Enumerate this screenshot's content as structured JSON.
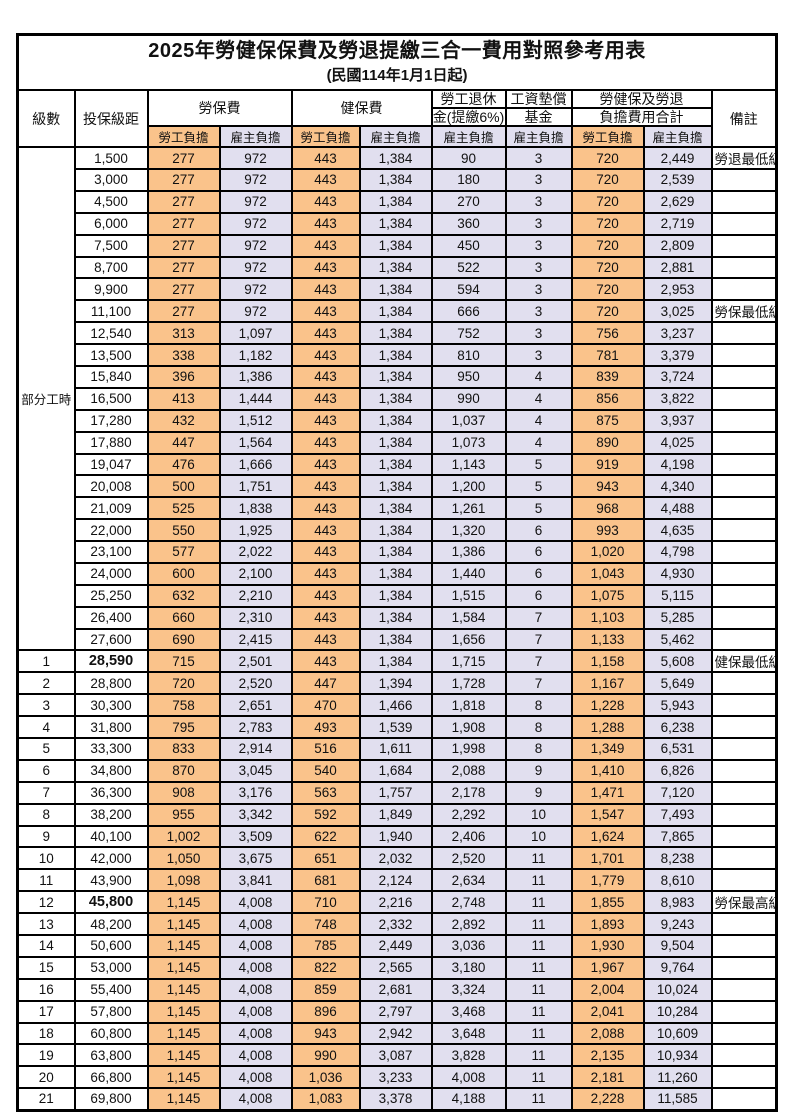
{
  "title": "2025年勞健保保費及勞退提繳三合一費用對照參考用表",
  "subtitle": "(民國114年1月1日起)",
  "header": {
    "level": "級數",
    "bracket": "投保級距",
    "labor_insurance": "勞保費",
    "health_insurance": "健保費",
    "pension_line1": "勞工退休",
    "pension_line2": "金(提繳6%)",
    "wage_fund_line1": "工資墊償",
    "wage_fund_line2": "基金",
    "total_line1": "勞健保及勞退",
    "total_line2": "負擔費用合計",
    "remark": "備註",
    "employee_share": "勞工負擔",
    "employer_share": "雇主負擔"
  },
  "colors": {
    "employee_bg": "#FAC38B",
    "employer_bg": "#E1DFEF",
    "highlight_text": "#FF5050",
    "border": "#000000"
  },
  "part_time_label": "部分工時",
  "rows": [
    {
      "level": "",
      "part_time_rowspan": 23,
      "bracket": "1,500",
      "values": [
        "277",
        "972",
        "443",
        "1,384",
        "90",
        "3",
        "720",
        "2,449"
      ],
      "remark": "勞退最低級距",
      "highlight": true,
      "bracket_bold": false
    },
    {
      "level": "",
      "bracket": "3,000",
      "values": [
        "277",
        "972",
        "443",
        "1,384",
        "180",
        "3",
        "720",
        "2,539"
      ],
      "remark": "",
      "highlight": false,
      "bracket_bold": false
    },
    {
      "level": "",
      "bracket": "4,500",
      "values": [
        "277",
        "972",
        "443",
        "1,384",
        "270",
        "3",
        "720",
        "2,629"
      ],
      "remark": "",
      "highlight": false,
      "bracket_bold": false
    },
    {
      "level": "",
      "bracket": "6,000",
      "values": [
        "277",
        "972",
        "443",
        "1,384",
        "360",
        "3",
        "720",
        "2,719"
      ],
      "remark": "",
      "highlight": false,
      "bracket_bold": false
    },
    {
      "level": "",
      "bracket": "7,500",
      "values": [
        "277",
        "972",
        "443",
        "1,384",
        "450",
        "3",
        "720",
        "2,809"
      ],
      "remark": "",
      "highlight": false,
      "bracket_bold": false
    },
    {
      "level": "",
      "bracket": "8,700",
      "values": [
        "277",
        "972",
        "443",
        "1,384",
        "522",
        "3",
        "720",
        "2,881"
      ],
      "remark": "",
      "highlight": false,
      "bracket_bold": false
    },
    {
      "level": "",
      "bracket": "9,900",
      "values": [
        "277",
        "972",
        "443",
        "1,384",
        "594",
        "3",
        "720",
        "2,953"
      ],
      "remark": "",
      "highlight": false,
      "bracket_bold": false
    },
    {
      "level": "",
      "bracket": "11,100",
      "values": [
        "277",
        "972",
        "443",
        "1,384",
        "666",
        "3",
        "720",
        "3,025"
      ],
      "remark": "勞保最低級距",
      "highlight": true,
      "bracket_bold": false
    },
    {
      "level": "",
      "bracket": "12,540",
      "values": [
        "313",
        "1,097",
        "443",
        "1,384",
        "752",
        "3",
        "756",
        "3,237"
      ],
      "remark": "",
      "highlight": false,
      "bracket_bold": false
    },
    {
      "level": "",
      "bracket": "13,500",
      "values": [
        "338",
        "1,182",
        "443",
        "1,384",
        "810",
        "3",
        "781",
        "3,379"
      ],
      "remark": "",
      "highlight": false,
      "bracket_bold": false
    },
    {
      "level": "",
      "bracket": "15,840",
      "values": [
        "396",
        "1,386",
        "443",
        "1,384",
        "950",
        "4",
        "839",
        "3,724"
      ],
      "remark": "",
      "highlight": false,
      "bracket_bold": false
    },
    {
      "level": "",
      "bracket": "16,500",
      "values": [
        "413",
        "1,444",
        "443",
        "1,384",
        "990",
        "4",
        "856",
        "3,822"
      ],
      "remark": "",
      "highlight": false,
      "bracket_bold": false
    },
    {
      "level": "",
      "bracket": "17,280",
      "values": [
        "432",
        "1,512",
        "443",
        "1,384",
        "1,037",
        "4",
        "875",
        "3,937"
      ],
      "remark": "",
      "highlight": false,
      "bracket_bold": false
    },
    {
      "level": "",
      "bracket": "17,880",
      "values": [
        "447",
        "1,564",
        "443",
        "1,384",
        "1,073",
        "4",
        "890",
        "4,025"
      ],
      "remark": "",
      "highlight": false,
      "bracket_bold": false
    },
    {
      "level": "",
      "bracket": "19,047",
      "values": [
        "476",
        "1,666",
        "443",
        "1,384",
        "1,143",
        "5",
        "919",
        "4,198"
      ],
      "remark": "",
      "highlight": false,
      "bracket_bold": false
    },
    {
      "level": "",
      "bracket": "20,008",
      "values": [
        "500",
        "1,751",
        "443",
        "1,384",
        "1,200",
        "5",
        "943",
        "4,340"
      ],
      "remark": "",
      "highlight": false,
      "bracket_bold": false
    },
    {
      "level": "",
      "bracket": "21,009",
      "values": [
        "525",
        "1,838",
        "443",
        "1,384",
        "1,261",
        "5",
        "968",
        "4,488"
      ],
      "remark": "",
      "highlight": false,
      "bracket_bold": false
    },
    {
      "level": "",
      "bracket": "22,000",
      "values": [
        "550",
        "1,925",
        "443",
        "1,384",
        "1,320",
        "6",
        "993",
        "4,635"
      ],
      "remark": "",
      "highlight": false,
      "bracket_bold": false
    },
    {
      "level": "",
      "bracket": "23,100",
      "values": [
        "577",
        "2,022",
        "443",
        "1,384",
        "1,386",
        "6",
        "1,020",
        "4,798"
      ],
      "remark": "",
      "highlight": false,
      "bracket_bold": false
    },
    {
      "level": "",
      "bracket": "24,000",
      "values": [
        "600",
        "2,100",
        "443",
        "1,384",
        "1,440",
        "6",
        "1,043",
        "4,930"
      ],
      "remark": "",
      "highlight": false,
      "bracket_bold": false
    },
    {
      "level": "",
      "bracket": "25,250",
      "values": [
        "632",
        "2,210",
        "443",
        "1,384",
        "1,515",
        "6",
        "1,075",
        "5,115"
      ],
      "remark": "",
      "highlight": false,
      "bracket_bold": false
    },
    {
      "level": "",
      "bracket": "26,400",
      "values": [
        "660",
        "2,310",
        "443",
        "1,384",
        "1,584",
        "7",
        "1,103",
        "5,285"
      ],
      "remark": "",
      "highlight": false,
      "bracket_bold": false
    },
    {
      "level": "",
      "bracket": "27,600",
      "values": [
        "690",
        "2,415",
        "443",
        "1,384",
        "1,656",
        "7",
        "1,133",
        "5,462"
      ],
      "remark": "",
      "highlight": false,
      "bracket_bold": false
    },
    {
      "level": "1",
      "bracket": "28,590",
      "values": [
        "715",
        "2,501",
        "443",
        "1,384",
        "1,715",
        "7",
        "1,158",
        "5,608"
      ],
      "remark": "健保最低級距",
      "highlight": true,
      "bracket_bold": true
    },
    {
      "level": "2",
      "bracket": "28,800",
      "values": [
        "720",
        "2,520",
        "447",
        "1,394",
        "1,728",
        "7",
        "1,167",
        "5,649"
      ],
      "remark": "",
      "highlight": false,
      "bracket_bold": false
    },
    {
      "level": "3",
      "bracket": "30,300",
      "values": [
        "758",
        "2,651",
        "470",
        "1,466",
        "1,818",
        "8",
        "1,228",
        "5,943"
      ],
      "remark": "",
      "highlight": false,
      "bracket_bold": false
    },
    {
      "level": "4",
      "bracket": "31,800",
      "values": [
        "795",
        "2,783",
        "493",
        "1,539",
        "1,908",
        "8",
        "1,288",
        "6,238"
      ],
      "remark": "",
      "highlight": false,
      "bracket_bold": false
    },
    {
      "level": "5",
      "bracket": "33,300",
      "values": [
        "833",
        "2,914",
        "516",
        "1,611",
        "1,998",
        "8",
        "1,349",
        "6,531"
      ],
      "remark": "",
      "highlight": false,
      "bracket_bold": false
    },
    {
      "level": "6",
      "bracket": "34,800",
      "values": [
        "870",
        "3,045",
        "540",
        "1,684",
        "2,088",
        "9",
        "1,410",
        "6,826"
      ],
      "remark": "",
      "highlight": false,
      "bracket_bold": false
    },
    {
      "level": "7",
      "bracket": "36,300",
      "values": [
        "908",
        "3,176",
        "563",
        "1,757",
        "2,178",
        "9",
        "1,471",
        "7,120"
      ],
      "remark": "",
      "highlight": false,
      "bracket_bold": false
    },
    {
      "level": "8",
      "bracket": "38,200",
      "values": [
        "955",
        "3,342",
        "592",
        "1,849",
        "2,292",
        "10",
        "1,547",
        "7,493"
      ],
      "remark": "",
      "highlight": false,
      "bracket_bold": false
    },
    {
      "level": "9",
      "bracket": "40,100",
      "values": [
        "1,002",
        "3,509",
        "622",
        "1,940",
        "2,406",
        "10",
        "1,624",
        "7,865"
      ],
      "remark": "",
      "highlight": false,
      "bracket_bold": false
    },
    {
      "level": "10",
      "bracket": "42,000",
      "values": [
        "1,050",
        "3,675",
        "651",
        "2,032",
        "2,520",
        "11",
        "1,701",
        "8,238"
      ],
      "remark": "",
      "highlight": false,
      "bracket_bold": false
    },
    {
      "level": "11",
      "bracket": "43,900",
      "values": [
        "1,098",
        "3,841",
        "681",
        "2,124",
        "2,634",
        "11",
        "1,779",
        "8,610"
      ],
      "remark": "",
      "highlight": false,
      "bracket_bold": false
    },
    {
      "level": "12",
      "bracket": "45,800",
      "values": [
        "1,145",
        "4,008",
        "710",
        "2,216",
        "2,748",
        "11",
        "1,855",
        "8,983"
      ],
      "remark": "勞保最高級距",
      "highlight": true,
      "bracket_bold": true
    },
    {
      "level": "13",
      "bracket": "48,200",
      "values": [
        "1,145",
        "4,008",
        "748",
        "2,332",
        "2,892",
        "11",
        "1,893",
        "9,243"
      ],
      "remark": "",
      "highlight": false,
      "bracket_bold": false
    },
    {
      "level": "14",
      "bracket": "50,600",
      "values": [
        "1,145",
        "4,008",
        "785",
        "2,449",
        "3,036",
        "11",
        "1,930",
        "9,504"
      ],
      "remark": "",
      "highlight": false,
      "bracket_bold": false
    },
    {
      "level": "15",
      "bracket": "53,000",
      "values": [
        "1,145",
        "4,008",
        "822",
        "2,565",
        "3,180",
        "11",
        "1,967",
        "9,764"
      ],
      "remark": "",
      "highlight": false,
      "bracket_bold": false
    },
    {
      "level": "16",
      "bracket": "55,400",
      "values": [
        "1,145",
        "4,008",
        "859",
        "2,681",
        "3,324",
        "11",
        "2,004",
        "10,024"
      ],
      "remark": "",
      "highlight": false,
      "bracket_bold": false
    },
    {
      "level": "17",
      "bracket": "57,800",
      "values": [
        "1,145",
        "4,008",
        "896",
        "2,797",
        "3,468",
        "11",
        "2,041",
        "10,284"
      ],
      "remark": "",
      "highlight": false,
      "bracket_bold": false
    },
    {
      "level": "18",
      "bracket": "60,800",
      "values": [
        "1,145",
        "4,008",
        "943",
        "2,942",
        "3,648",
        "11",
        "2,088",
        "10,609"
      ],
      "remark": "",
      "highlight": false,
      "bracket_bold": false
    },
    {
      "level": "19",
      "bracket": "63,800",
      "values": [
        "1,145",
        "4,008",
        "990",
        "3,087",
        "3,828",
        "11",
        "2,135",
        "10,934"
      ],
      "remark": "",
      "highlight": false,
      "bracket_bold": false
    },
    {
      "level": "20",
      "bracket": "66,800",
      "values": [
        "1,145",
        "4,008",
        "1,036",
        "3,233",
        "4,008",
        "11",
        "2,181",
        "11,260"
      ],
      "remark": "",
      "highlight": false,
      "bracket_bold": false
    },
    {
      "level": "21",
      "bracket": "69,800",
      "values": [
        "1,145",
        "4,008",
        "1,083",
        "3,378",
        "4,188",
        "11",
        "2,228",
        "11,585"
      ],
      "remark": "",
      "highlight": false,
      "bracket_bold": false
    }
  ]
}
